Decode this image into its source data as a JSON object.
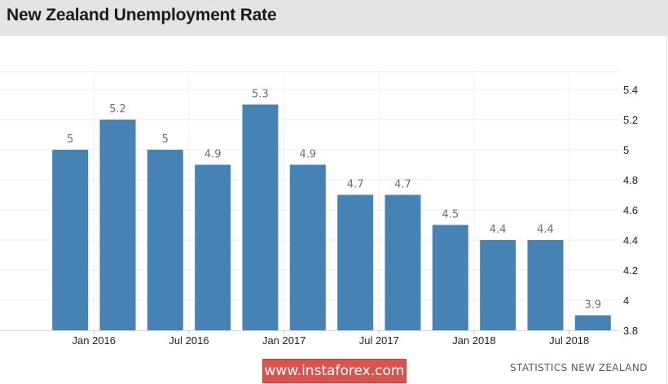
{
  "title": "New Zealand Unemployment Rate",
  "source": "STATISTICS NEW ZEALAND",
  "watermark": "www.instaforex.com",
  "colors": {
    "bar": "#4682b4",
    "title_bar_bg": "#e4e4e4",
    "watermark_bg": "#d9534f",
    "data_label": "#6d6d6d"
  },
  "chart_data": {
    "type": "bar",
    "title": "New Zealand Unemployment Rate",
    "xlabel": "",
    "ylabel": "",
    "y_axis_position": "right",
    "ylim": [
      3.8,
      5.4
    ],
    "yticks": [
      3.8,
      4,
      4.2,
      4.4,
      4.6,
      4.8,
      5,
      5.2,
      5.4
    ],
    "ytick_labels": [
      "3.8",
      "4",
      "4.2",
      "4.4",
      "4.6",
      "4.8",
      "5",
      "5.2",
      "5.4"
    ],
    "grid": true,
    "values": [
      5.0,
      5.2,
      5.0,
      4.9,
      5.3,
      4.9,
      4.7,
      4.7,
      4.5,
      4.4,
      4.4,
      3.9
    ],
    "value_labels": [
      "5",
      "5.2",
      "5",
      "4.9",
      "5.3",
      "4.9",
      "4.7",
      "4.7",
      "4.5",
      "4.4",
      "4.4",
      "3.9"
    ],
    "x_tick_labels": [
      {
        "label": "Jan 2016",
        "bar_index": 0.5
      },
      {
        "label": "Jul 2016",
        "bar_index": 2.5
      },
      {
        "label": "Jan 2017",
        "bar_index": 4.5
      },
      {
        "label": "Jul 2017",
        "bar_index": 6.5
      },
      {
        "label": "Jan 2018",
        "bar_index": 8.5
      },
      {
        "label": "Jul 2018",
        "bar_index": 10.5
      }
    ]
  }
}
